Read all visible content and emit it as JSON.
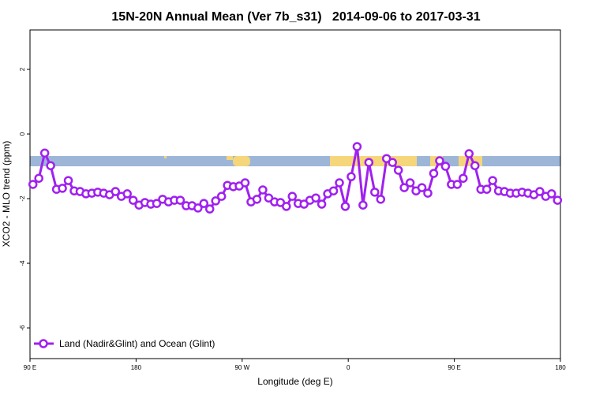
{
  "chart_data": {
    "type": "line",
    "title": "15N-20N Annual Mean (Ver 7b_s31)   2014-09-06 to 2017-03-31",
    "x_label": "Longitude (deg E)",
    "y_label": "XCO2 - MLO trend (ppm)",
    "xlim": [
      90,
      540
    ],
    "xticks": [
      {
        "value": 90,
        "label": "90 E"
      },
      180,
      {
        "value": 270,
        "label": "90 W"
      },
      {
        "value": 360,
        "label": "0"
      },
      {
        "value": 450,
        "label": "90 E"
      },
      {
        "value": 540,
        "label": "180"
      }
    ],
    "ylim": [
      -6.95,
      3.22
    ],
    "yticks": [
      2,
      0,
      -2,
      -4,
      -6
    ],
    "legend": "bottomleft",
    "x": [
      92.5,
      97.5,
      102.5,
      107.5,
      112.5,
      117.5,
      122.5,
      127.5,
      132.5,
      137.5,
      142.5,
      147.5,
      152.5,
      157.5,
      162.5,
      167.5,
      172.5,
      177.5,
      182.5,
      187.5,
      192.5,
      197.5,
      202.5,
      207.5,
      212.5,
      217.5,
      222.5,
      227.5,
      232.5,
      237.5,
      242.5,
      247.5,
      252.5,
      257.5,
      262.5,
      267.5,
      272.5,
      277.5,
      282.5,
      287.5,
      292.5,
      297.5,
      302.5,
      307.5,
      312.5,
      317.5,
      322.5,
      327.5,
      332.5,
      337.5,
      342.5,
      347.5,
      352.5,
      357.5,
      362.5,
      367.5,
      372.5,
      377.5,
      382.5,
      387.5,
      392.5,
      397.5,
      402.5,
      407.5,
      412.5,
      417.5,
      422.5,
      427.5,
      432.5,
      437.5,
      442.5,
      447.5,
      452.5,
      457.5,
      462.5,
      467.5,
      472.5,
      477.5,
      482.5,
      487.5,
      492.5,
      497.5,
      502.5,
      507.5,
      512.5,
      517.5,
      522.5,
      527.5,
      532.5,
      537.5
    ],
    "series": [
      {
        "name": "Land (Nadir&Glint) and Ocean (Glint)",
        "color": "#a020f0",
        "values": [
          -1.56,
          -1.37,
          -0.59,
          -0.98,
          -1.71,
          -1.68,
          -1.44,
          -1.76,
          -1.78,
          -1.85,
          -1.83,
          -1.8,
          -1.83,
          -1.88,
          -1.78,
          -1.93,
          -1.85,
          -2.05,
          -2.2,
          -2.12,
          -2.17,
          -2.15,
          -2.02,
          -2.1,
          -2.05,
          -2.05,
          -2.22,
          -2.22,
          -2.29,
          -2.15,
          -2.32,
          -2.07,
          -1.93,
          -1.59,
          -1.63,
          -1.61,
          -1.51,
          -2.1,
          -2.02,
          -1.73,
          -1.98,
          -2.1,
          -2.12,
          -2.24,
          -1.93,
          -2.15,
          -2.17,
          -2.05,
          -1.98,
          -2.17,
          -1.85,
          -1.76,
          -1.51,
          -2.24,
          -1.32,
          -0.39,
          -2.2,
          -0.88,
          -1.8,
          -2.02,
          -0.76,
          -0.88,
          -1.12,
          -1.66,
          -1.51,
          -1.76,
          -1.66,
          -1.83,
          -1.22,
          -0.83,
          -1.0,
          -1.56,
          -1.56,
          -1.37,
          -0.61,
          -0.98,
          -1.71,
          -1.71,
          -1.44,
          -1.76,
          -1.78,
          -1.83,
          -1.83,
          -1.8,
          -1.83,
          -1.88,
          -1.78,
          -1.93,
          -1.85,
          -2.05
        ]
      }
    ]
  }
}
